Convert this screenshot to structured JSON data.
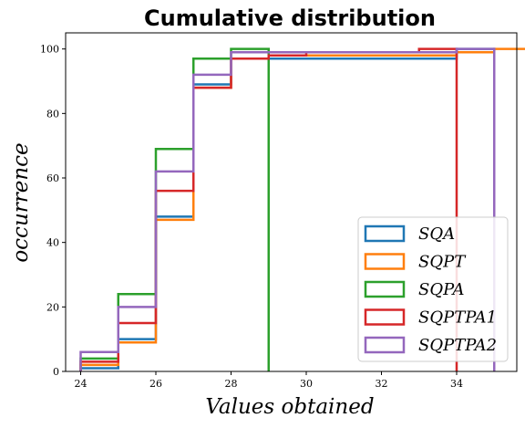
{
  "chart_data": {
    "type": "line",
    "subtype": "step-cumulative-histogram",
    "title": "Cumulative distribution",
    "xlabel": "Values obtained",
    "ylabel": "occurrence",
    "xlim": [
      23.6,
      35.6
    ],
    "ylim": [
      0,
      105
    ],
    "x_ticks": [
      24,
      26,
      28,
      30,
      32,
      34
    ],
    "y_ticks": [
      0,
      20,
      40,
      60,
      80,
      100
    ],
    "grid": false,
    "legend_position": "lower-right",
    "series": [
      {
        "name": "SQA",
        "color": "#1f77b4",
        "steps": [
          [
            24,
            1
          ],
          [
            25,
            10
          ],
          [
            26,
            48
          ],
          [
            27,
            89
          ],
          [
            28,
            97
          ],
          [
            29,
            97
          ],
          [
            30,
            97
          ],
          [
            31,
            97
          ],
          [
            32,
            97
          ],
          [
            33,
            97
          ],
          [
            34,
            100
          ]
        ]
      },
      {
        "name": "SQPT",
        "color": "#ff7f0e",
        "steps": [
          [
            24,
            2
          ],
          [
            25,
            9
          ],
          [
            26,
            47
          ],
          [
            27,
            88
          ],
          [
            28,
            97
          ],
          [
            29,
            98
          ],
          [
            30,
            98
          ],
          [
            31,
            98
          ],
          [
            32,
            98
          ],
          [
            33,
            98
          ],
          [
            34,
            99
          ],
          [
            35,
            100
          ]
        ]
      },
      {
        "name": "SQPA",
        "color": "#2ca02c",
        "steps": [
          [
            24,
            4
          ],
          [
            25,
            24
          ],
          [
            26,
            69
          ],
          [
            27,
            97
          ],
          [
            28,
            100
          ]
        ]
      },
      {
        "name": "SQPTPA1",
        "color": "#d62728",
        "steps": [
          [
            24,
            3
          ],
          [
            25,
            15
          ],
          [
            26,
            56
          ],
          [
            27,
            88
          ],
          [
            28,
            97
          ],
          [
            29,
            98
          ],
          [
            30,
            99
          ],
          [
            31,
            99
          ],
          [
            32,
            99
          ],
          [
            33,
            100
          ]
        ]
      },
      {
        "name": "SQPTPA2",
        "color": "#9467bd",
        "steps": [
          [
            24,
            6
          ],
          [
            25,
            20
          ],
          [
            26,
            62
          ],
          [
            27,
            92
          ],
          [
            28,
            99
          ],
          [
            29,
            99
          ],
          [
            30,
            99
          ],
          [
            31,
            99
          ],
          [
            32,
            99
          ],
          [
            33,
            99
          ],
          [
            34,
            100
          ]
        ]
      }
    ]
  }
}
